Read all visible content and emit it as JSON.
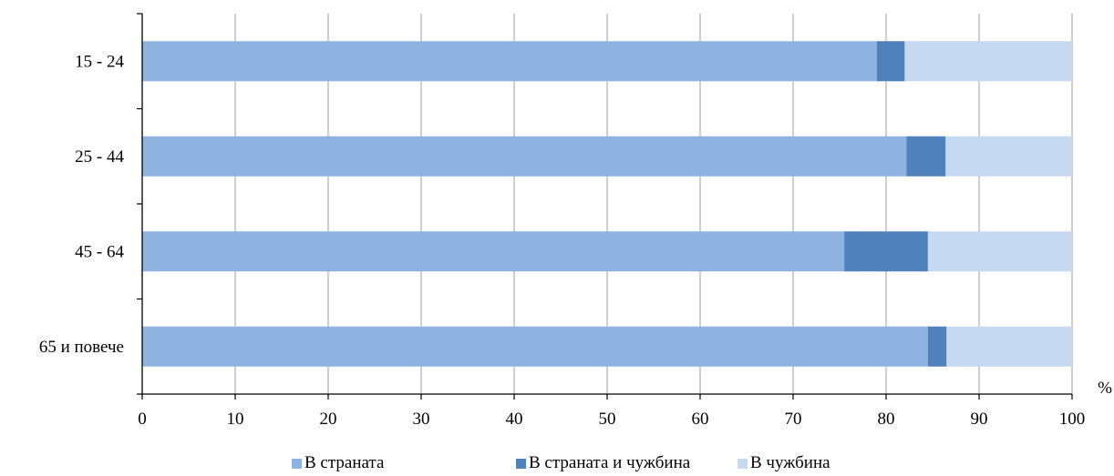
{
  "chart_data": {
    "type": "bar",
    "orientation": "horizontal",
    "stacked": true,
    "categories": [
      "15 - 24",
      "25 - 44",
      "45 - 64",
      "65 и повече"
    ],
    "series": [
      {
        "name": "В страната",
        "color": "#8EB3E0",
        "values": [
          79.0,
          82.2,
          75.5,
          84.5
        ]
      },
      {
        "name": "В страната и чужбина",
        "color": "#4F81BD",
        "values": [
          3.0,
          4.2,
          9.0,
          2.0
        ]
      },
      {
        "name": "В чужбина",
        "color": "#C6D9F1",
        "values": [
          18.0,
          13.6,
          15.5,
          13.5
        ]
      }
    ],
    "xlim": [
      0,
      100
    ],
    "xticks": [
      "0",
      "10",
      "20",
      "30",
      "40",
      "50",
      "60",
      "70",
      "80",
      "90",
      "100"
    ],
    "unit_label": "%",
    "grid": true,
    "legend_position": "bottom"
  }
}
